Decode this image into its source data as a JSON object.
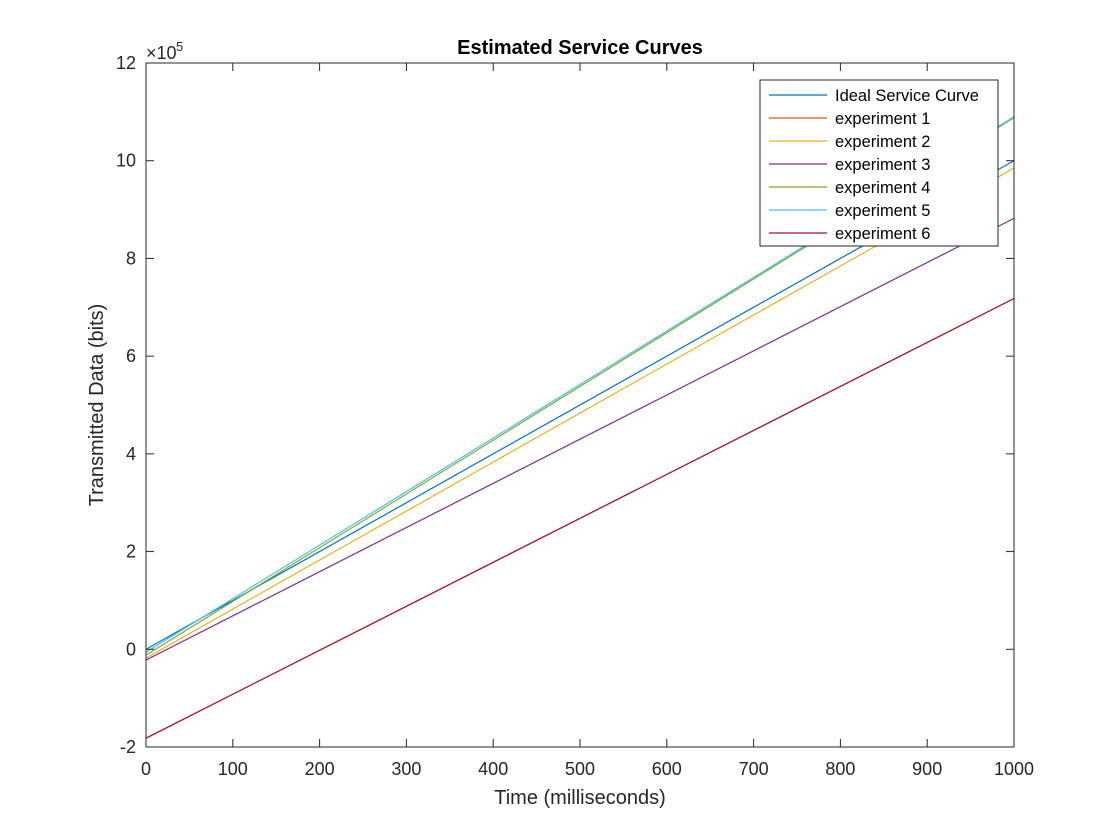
{
  "chart_data": {
    "type": "line",
    "title": "Estimated Service Curves",
    "xlabel": "Time (milliseconds)",
    "ylabel": "Transmitted Data (bits)",
    "y_multiplier_label": "×10",
    "y_multiplier_exponent": "5",
    "xlim": [
      0,
      1000
    ],
    "ylim": [
      -2,
      12
    ],
    "y_scale_factor": 100000,
    "x_ticks": [
      "0",
      "100",
      "200",
      "300",
      "400",
      "500",
      "600",
      "700",
      "800",
      "900",
      "1000"
    ],
    "y_ticks": [
      "-2",
      "0",
      "2",
      "4",
      "6",
      "8",
      "10",
      "12"
    ],
    "x_tick_values": [
      0,
      100,
      200,
      300,
      400,
      500,
      600,
      700,
      800,
      900,
      1000
    ],
    "y_tick_values": [
      -2,
      0,
      2,
      4,
      6,
      8,
      10,
      12
    ],
    "grid": false,
    "legend_position": "top-right",
    "series": [
      {
        "name": "Ideal Service Curve",
        "color": "#0072BD",
        "x": [
          0,
          1000
        ],
        "y": [
          0.0,
          10.0
        ]
      },
      {
        "name": "experiment 1",
        "color": "#D95319",
        "x": [
          0,
          1000
        ],
        "y": [
          -1.82,
          7.18
        ]
      },
      {
        "name": "experiment 2",
        "color": "#EDB120",
        "x": [
          0,
          1000
        ],
        "y": [
          -0.18,
          9.85
        ]
      },
      {
        "name": "experiment 3",
        "color": "#7E2F8E",
        "x": [
          0,
          1000
        ],
        "y": [
          -0.22,
          8.82
        ]
      },
      {
        "name": "experiment 4",
        "color": "#77AC30",
        "x": [
          0,
          1000
        ],
        "y": [
          -0.12,
          10.88
        ]
      },
      {
        "name": "experiment 5",
        "color": "#4DBEEE",
        "x": [
          0,
          1000
        ],
        "y": [
          -0.06,
          10.9
        ]
      },
      {
        "name": "experiment 6",
        "color": "#A2142F",
        "x": [
          0,
          1000
        ],
        "y": [
          -1.82,
          7.18
        ]
      }
    ]
  }
}
